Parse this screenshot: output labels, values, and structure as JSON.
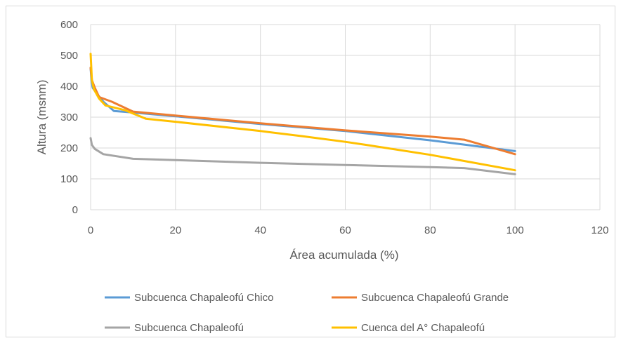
{
  "chart_data": {
    "type": "line",
    "xlabel": "Área acumulada (%)",
    "ylabel": "Altura (msnm)",
    "xlim": [
      0,
      120
    ],
    "ylim": [
      0,
      600
    ],
    "x_ticks": [
      "0",
      "20",
      "40",
      "60",
      "80",
      "100",
      "120"
    ],
    "y_ticks": [
      "0",
      "100",
      "200",
      "300",
      "400",
      "500",
      "600"
    ],
    "grid": true,
    "legend_position": "bottom",
    "series": [
      {
        "name": "Subcuenca Chapaleofú Chico",
        "color": "#5b9bd5",
        "points": [
          [
            0,
            460
          ],
          [
            0.2,
            420
          ],
          [
            0.5,
            395
          ],
          [
            1.5,
            375
          ],
          [
            3,
            350
          ],
          [
            5.5,
            320
          ],
          [
            10,
            315
          ],
          [
            20,
            303
          ],
          [
            40,
            278
          ],
          [
            60,
            255
          ],
          [
            80,
            225
          ],
          [
            100,
            190
          ]
        ]
      },
      {
        "name": "Subcuenca Chapaleofú Grande",
        "color": "#ed7d31",
        "points": [
          [
            0,
            460
          ],
          [
            0.3,
            420
          ],
          [
            1,
            395
          ],
          [
            2,
            365
          ],
          [
            5,
            350
          ],
          [
            10,
            318
          ],
          [
            20,
            305
          ],
          [
            40,
            280
          ],
          [
            60,
            257
          ],
          [
            80,
            237
          ],
          [
            88,
            227
          ],
          [
            100,
            180
          ]
        ]
      },
      {
        "name": "Subcuenca Chapaleofú",
        "color": "#a5a5a5",
        "points": [
          [
            0,
            232
          ],
          [
            0.3,
            210
          ],
          [
            1,
            197
          ],
          [
            3,
            180
          ],
          [
            10,
            165
          ],
          [
            20,
            161
          ],
          [
            40,
            152
          ],
          [
            60,
            145
          ],
          [
            80,
            138
          ],
          [
            88,
            135
          ],
          [
            100,
            115
          ]
        ]
      },
      {
        "name": "Cuenca del A° Chapaleofú",
        "color": "#ffc000",
        "points": [
          [
            0,
            505
          ],
          [
            0.3,
            420
          ],
          [
            0.8,
            390
          ],
          [
            2,
            360
          ],
          [
            3.5,
            338
          ],
          [
            8,
            323
          ],
          [
            13,
            295
          ],
          [
            20,
            285
          ],
          [
            40,
            255
          ],
          [
            50,
            238
          ],
          [
            60,
            220
          ],
          [
            65,
            210
          ],
          [
            80,
            178
          ],
          [
            100,
            128
          ]
        ]
      }
    ]
  }
}
